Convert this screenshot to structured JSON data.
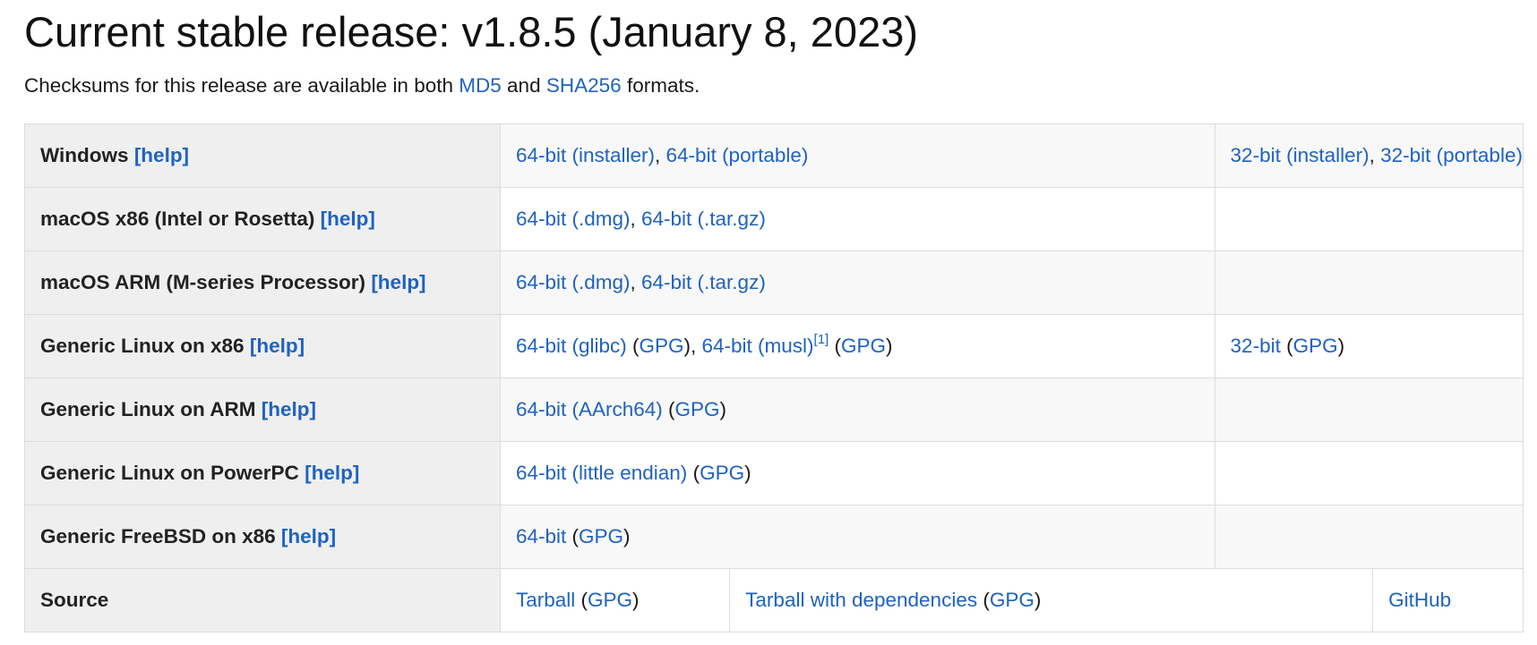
{
  "title": "Current stable release: v1.8.5 (January 8, 2023)",
  "intro": {
    "before": "Checksums for this release are available in both",
    "md5": "MD5",
    "and": "and",
    "sha256": "SHA256",
    "after": "formats."
  },
  "help": "[help]",
  "gpg": "GPG",
  "rows": {
    "windows": {
      "label": "Windows",
      "a1": "64-bit (installer)",
      "a2": "64-bit (portable)",
      "b1": "32-bit (installer)",
      "b2": "32-bit (portable)"
    },
    "mac_x86": {
      "label": "macOS x86 (Intel or Rosetta)",
      "a1": "64-bit (.dmg)",
      "a2": "64-bit (.tar.gz)"
    },
    "mac_arm": {
      "label": "macOS ARM (M-series Processor)",
      "a1": "64-bit (.dmg)",
      "a2": "64-bit (.tar.gz)"
    },
    "linux_x86": {
      "label": "Generic Linux on x86",
      "a1": "64-bit (glibc)",
      "a2": "64-bit (musl)",
      "footnote": "[1]",
      "b1": "32-bit"
    },
    "linux_arm": {
      "label": "Generic Linux on ARM",
      "a1": "64-bit (AArch64)"
    },
    "linux_ppc": {
      "label": "Generic Linux on PowerPC",
      "a1": "64-bit (little endian)"
    },
    "freebsd": {
      "label": "Generic FreeBSD on x86",
      "a1": "64-bit"
    },
    "source": {
      "label": "Source",
      "a1": "Tarball",
      "b1": "Tarball with dependencies",
      "c1": "GitHub"
    }
  },
  "colors": {
    "link": "#1f62c2",
    "label_bg": "#efefef",
    "border": "#dcdcdc"
  }
}
